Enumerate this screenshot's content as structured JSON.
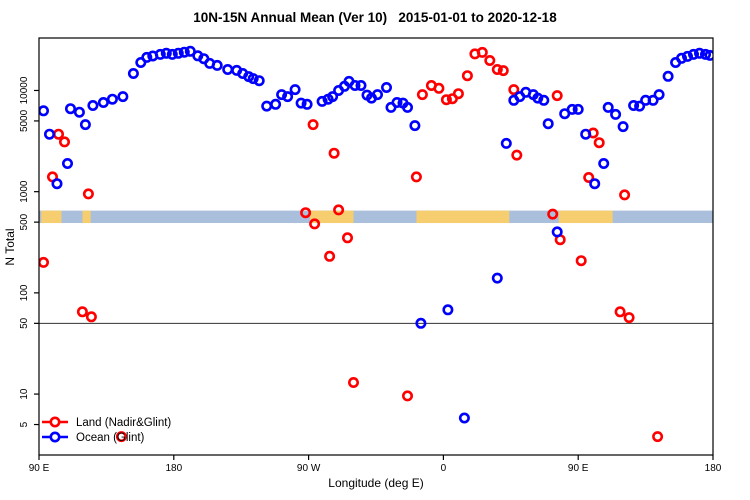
{
  "title": "10N-15N Annual Mean (Ver 10)   2015-01-01 to 2020-12-18",
  "axes": {
    "x_label": "Longitude (deg E)",
    "y_label": "N Total",
    "x_ticks": [
      {
        "pos": 90,
        "label": "90 E"
      },
      {
        "pos": 180,
        "label": "180"
      },
      {
        "pos": 270,
        "label": "90 W"
      },
      {
        "pos": 360,
        "label": "0"
      },
      {
        "pos": 450,
        "label": "90 E"
      },
      {
        "pos": 540,
        "label": "180"
      }
    ],
    "y_ticks": [
      {
        "value": 5,
        "label": "5"
      },
      {
        "value": 10,
        "label": "10"
      },
      {
        "value": 50,
        "label": "50"
      },
      {
        "value": 100,
        "label": "100"
      },
      {
        "value": 500,
        "label": "500"
      },
      {
        "value": 1000,
        "label": "1000"
      },
      {
        "value": 5000,
        "label": "5000"
      },
      {
        "value": 10000,
        "label": "10000"
      }
    ]
  },
  "chart_data": {
    "type": "scatter",
    "title": "10N-15N Annual Mean (Ver 10)   2015-01-01 to 2020-12-18",
    "xlabel": "Longitude (deg E)",
    "ylabel": "N Total",
    "x_axis": {
      "range_axis_deg": [
        90,
        540
      ],
      "note": "longitude axis wraps: 90E to 180 to 90W to 0 to 90E to 180"
    },
    "y_axis": {
      "scale": "log",
      "range": [
        2.5,
        33000
      ],
      "ticks": [
        5,
        10,
        50,
        100,
        500,
        1000,
        5000,
        10000
      ]
    },
    "reference_line_y": 50,
    "map_band": {
      "y_range": [
        490,
        650
      ],
      "ocean_color": "#a9bfdc",
      "land_color": "#f6cd6f",
      "land_patches_deg": [
        [
          91.5,
          105
        ],
        [
          119,
          124.5
        ],
        [
          271,
          300
        ],
        [
          342,
          404
        ],
        [
          437,
          473
        ]
      ]
    },
    "series": [
      {
        "name": "Land (Nadir&Glint)",
        "color": "#ff0000",
        "points": [
          [
            93,
            200
          ],
          [
            99,
            1400
          ],
          [
            103,
            3700
          ],
          [
            107,
            3100
          ],
          [
            119,
            65
          ],
          [
            123,
            950
          ],
          [
            125,
            58
          ],
          [
            145,
            3.8
          ],
          [
            268,
            620
          ],
          [
            273,
            4600
          ],
          [
            274,
            480
          ],
          [
            284,
            230
          ],
          [
            287,
            2400
          ],
          [
            290,
            660
          ],
          [
            296,
            350
          ],
          [
            300,
            13
          ],
          [
            336,
            9.6
          ],
          [
            342,
            1400
          ],
          [
            346,
            9100
          ],
          [
            352,
            11200
          ],
          [
            357,
            10500
          ],
          [
            362,
            8100
          ],
          [
            366,
            8300
          ],
          [
            370,
            9300
          ],
          [
            376,
            14000
          ],
          [
            381,
            23000
          ],
          [
            386,
            23800
          ],
          [
            391,
            19800
          ],
          [
            396,
            16100
          ],
          [
            400,
            15700
          ],
          [
            407,
            10200
          ],
          [
            409,
            2300
          ],
          [
            433,
            600
          ],
          [
            436,
            8900
          ],
          [
            438,
            335
          ],
          [
            452,
            208
          ],
          [
            457,
            1380
          ],
          [
            460,
            3800
          ],
          [
            464,
            3050
          ],
          [
            478,
            65
          ],
          [
            481,
            930
          ],
          [
            484,
            57
          ],
          [
            503,
            3.8
          ]
        ]
      },
      {
        "name": "Ocean (Glint)",
        "color": "#0000ff",
        "points": [
          [
            93,
            6300
          ],
          [
            97,
            3700
          ],
          [
            102,
            1200
          ],
          [
            109,
            1900
          ],
          [
            111,
            6600
          ],
          [
            117,
            6100
          ],
          [
            121,
            4600
          ],
          [
            126,
            7100
          ],
          [
            133,
            7600
          ],
          [
            139,
            8200
          ],
          [
            146,
            8700
          ],
          [
            153,
            14700
          ],
          [
            158,
            18900
          ],
          [
            162,
            21200
          ],
          [
            166,
            21900
          ],
          [
            171,
            22700
          ],
          [
            175,
            23300
          ],
          [
            179,
            22700
          ],
          [
            183,
            23300
          ],
          [
            187,
            23900
          ],
          [
            191,
            24400
          ],
          [
            196,
            22000
          ],
          [
            200,
            20600
          ],
          [
            204,
            18500
          ],
          [
            209,
            17700
          ],
          [
            216,
            16100
          ],
          [
            222,
            15800
          ],
          [
            226,
            14700
          ],
          [
            230,
            13700
          ],
          [
            233,
            13100
          ],
          [
            237,
            12500
          ],
          [
            242,
            7000
          ],
          [
            248,
            7300
          ],
          [
            252,
            9100
          ],
          [
            256,
            8700
          ],
          [
            261,
            10200
          ],
          [
            265,
            7500
          ],
          [
            269,
            7300
          ],
          [
            279,
            7800
          ],
          [
            283,
            8200
          ],
          [
            286,
            8700
          ],
          [
            290,
            10000
          ],
          [
            294,
            11000
          ],
          [
            297,
            12300
          ],
          [
            301,
            11200
          ],
          [
            305,
            11200
          ],
          [
            309,
            9000
          ],
          [
            312,
            8400
          ],
          [
            316,
            9100
          ],
          [
            322,
            10700
          ],
          [
            325,
            6800
          ],
          [
            329,
            7600
          ],
          [
            333,
            7500
          ],
          [
            336,
            6800
          ],
          [
            341,
            4500
          ],
          [
            345,
            50
          ],
          [
            363,
            68
          ],
          [
            374,
            5.8
          ],
          [
            396,
            140
          ],
          [
            402,
            3000
          ],
          [
            407,
            8000
          ],
          [
            411,
            8700
          ],
          [
            415,
            9600
          ],
          [
            420,
            9100
          ],
          [
            423,
            8400
          ],
          [
            427,
            8000
          ],
          [
            430,
            4700
          ],
          [
            436,
            400
          ],
          [
            441,
            5900
          ],
          [
            446,
            6500
          ],
          [
            450,
            6500
          ],
          [
            455,
            3700
          ],
          [
            461,
            1200
          ],
          [
            467,
            1900
          ],
          [
            470,
            6800
          ],
          [
            475,
            5800
          ],
          [
            480,
            4400
          ],
          [
            487,
            7100
          ],
          [
            491,
            7000
          ],
          [
            495,
            8000
          ],
          [
            500,
            8000
          ],
          [
            504,
            9100
          ],
          [
            510,
            13800
          ],
          [
            515,
            18900
          ],
          [
            519,
            20800
          ],
          [
            523,
            21700
          ],
          [
            527,
            22700
          ],
          [
            531,
            23300
          ],
          [
            535,
            22700
          ],
          [
            538,
            22200
          ]
        ]
      }
    ]
  },
  "legend": {
    "land_label": "Land (Nadir&Glint)",
    "ocean_label": "Ocean (Glint)"
  }
}
